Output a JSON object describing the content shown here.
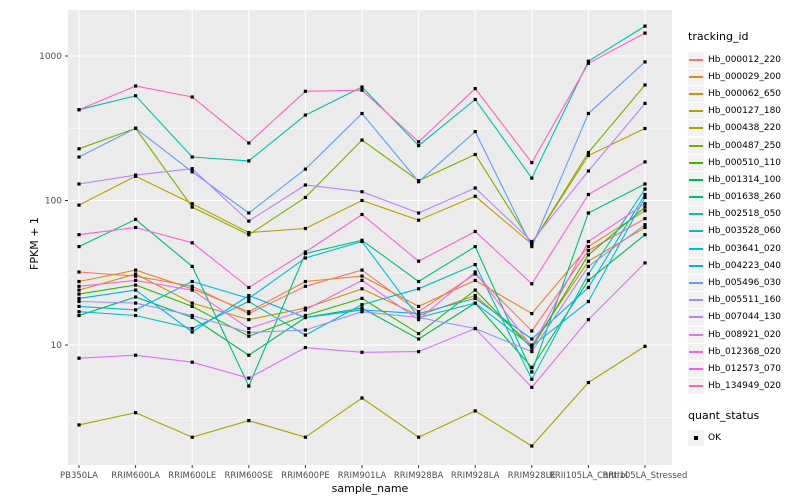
{
  "figure": {
    "y_axis_title": "FPKM + 1",
    "x_axis_title": "sample_name",
    "legend_title": "tracking_id",
    "quant_legend_title": "quant_status",
    "quant_legend_value": "OK"
  },
  "colors": {
    "panel_bg": "#EBEBEB",
    "grid": "#FFFFFF",
    "axis_text": "#4D4D4D",
    "tick_mark": "#333333",
    "point": "#000000",
    "legend_key_bg": "#F2F2F2"
  },
  "chart_data": {
    "type": "line",
    "title": "",
    "xlabel": "sample_name",
    "ylabel": "FPKM + 1",
    "y_scale": "log10",
    "ylim": [
      1.5,
      2100
    ],
    "y_major_ticks": [
      10,
      100,
      1000
    ],
    "y_minor_ticks": [
      3.162,
      31.62,
      316.2
    ],
    "grid": true,
    "legend_position": "right",
    "point_marker": {
      "shape": "square",
      "color": "#000000",
      "legend_label": "OK"
    },
    "categories": [
      "PB350LA",
      "RRIM600LA",
      "RRIM600LE",
      "RRIM600SE",
      "RRIM600PE",
      "RRIM901LA",
      "RRIM928BA",
      "RRIM928LA",
      "RRIM928LE",
      "RRII105LA_Control",
      "RRII105LA_Stressed"
    ],
    "series": [
      {
        "name": "Hb_000012_220",
        "color": "#F8766D",
        "values": [
          32,
          30,
          25.5,
          16.5,
          25.5,
          33,
          17,
          31,
          12.5,
          45,
          75
        ]
      },
      {
        "name": "Hb_000029_200",
        "color": "#E88526",
        "values": [
          27.5,
          33,
          24.5,
          17,
          27.5,
          30,
          18.5,
          28,
          16.5,
          48,
          85
        ]
      },
      {
        "name": "Hb_000062_650",
        "color": "#D39200",
        "values": [
          24,
          31,
          19.5,
          15,
          18,
          24.5,
          16,
          22,
          10,
          38,
          65
        ]
      },
      {
        "name": "Hb_000127_180",
        "color": "#BC9D00",
        "values": [
          93,
          147,
          95,
          60,
          64,
          100,
          73,
          107,
          50,
          205,
          315
        ]
      },
      {
        "name": "Hb_000438_220",
        "color": "#A3A500",
        "values": [
          2.8,
          3.4,
          2.3,
          3.0,
          2.3,
          4.3,
          2.3,
          3.5,
          2.0,
          5.5,
          9.8
        ]
      },
      {
        "name": "Hb_000487_250",
        "color": "#7CAE00",
        "values": [
          228,
          316,
          90,
          58,
          105,
          262,
          137,
          208,
          50,
          215,
          630
        ]
      },
      {
        "name": "Hb_000510_110",
        "color": "#39B600",
        "values": [
          22.5,
          26,
          18.5,
          11.5,
          16,
          21,
          12,
          24,
          9.5,
          42,
          90
        ]
      },
      {
        "name": "Hb_001314_100",
        "color": "#00BB4E",
        "values": [
          16,
          21.5,
          15.5,
          8.5,
          15.5,
          18,
          11,
          19.5,
          7,
          28,
          58
        ]
      },
      {
        "name": "Hb_001638_260",
        "color": "#00BF7D",
        "values": [
          48,
          74,
          35,
          5.2,
          43,
          53,
          27.5,
          48,
          6.5,
          82,
          130
        ]
      },
      {
        "name": "Hb_002518_050",
        "color": "#00C1A7",
        "values": [
          425,
          530,
          200,
          188,
          390,
          610,
          240,
          500,
          143,
          920,
          1610
        ]
      },
      {
        "name": "Hb_003528_060",
        "color": "#00BFC4",
        "values": [
          17,
          16,
          13,
          20,
          11.7,
          19,
          24.5,
          36,
          5.8,
          31,
          120
        ]
      },
      {
        "name": "Hb_003641_020",
        "color": "#00BAE0",
        "values": [
          18.5,
          17.5,
          27.5,
          21,
          40,
          52,
          15.5,
          19.5,
          9.8,
          20,
          105
        ]
      },
      {
        "name": "Hb_004223_040",
        "color": "#00B0F6",
        "values": [
          21,
          24,
          12.3,
          22,
          15.5,
          17.5,
          16.5,
          21,
          11,
          25,
          110
        ]
      },
      {
        "name": "Hb_005496_030",
        "color": "#619CFF",
        "values": [
          200,
          316,
          158,
          82,
          165,
          400,
          135,
          300,
          48,
          400,
          910
        ]
      },
      {
        "name": "Hb_005511_160",
        "color": "#9590FF",
        "values": [
          20,
          19.5,
          16,
          12.2,
          12.7,
          17,
          15.5,
          13,
          9,
          35,
          68
        ]
      },
      {
        "name": "Hb_007044_130",
        "color": "#B983FF",
        "values": [
          130,
          150,
          166,
          72,
          128,
          115,
          82,
          122,
          52,
          160,
          470
        ]
      },
      {
        "name": "Hb_008921_020",
        "color": "#DC71FA",
        "values": [
          8.1,
          8.5,
          7.6,
          5.9,
          9.6,
          8.9,
          9.0,
          13,
          5.1,
          15,
          37
        ]
      },
      {
        "name": "Hb_012368_020",
        "color": "#F066EA",
        "values": [
          25.5,
          28,
          24,
          13,
          17.5,
          28,
          15,
          32,
          9.7,
          52,
          95
        ]
      },
      {
        "name": "Hb_012573_070",
        "color": "#FB61D7",
        "values": [
          58,
          65,
          51,
          25,
          44,
          80,
          38,
          61,
          26.5,
          110,
          185
        ]
      },
      {
        "name": "Hb_134949_020",
        "color": "#FF62BC",
        "values": [
          425,
          620,
          520,
          250,
          570,
          580,
          255,
          595,
          183,
          890,
          1440
        ]
      }
    ]
  }
}
